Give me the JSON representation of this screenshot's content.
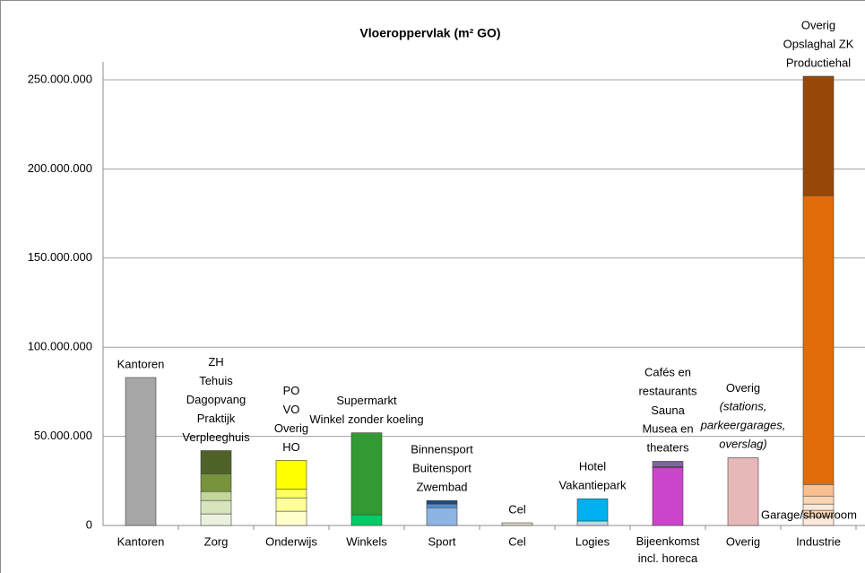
{
  "chart_data": {
    "type": "stacked-bar",
    "title": "Vloeroppervlak (m² GO)",
    "categories": [
      "Kantoren",
      "Zorg",
      "Onderwijs",
      "Winkels",
      "Sport",
      "Cel",
      "Logies",
      "Bijeenkomst incl. horeca",
      "Overig",
      "Industrie"
    ],
    "stacks": [
      [
        {
          "name": "Kantoren",
          "color": "#a6a6a6",
          "value": 83000000
        }
      ],
      [
        {
          "name": "ZH",
          "color": "#ebf1de",
          "value": 6500000
        },
        {
          "name": "Tehuis",
          "color": "#d8e4bc",
          "value": 7500000
        },
        {
          "name": "Dagopvang",
          "color": "#c4d79b",
          "value": 5000000
        },
        {
          "name": "Praktijk",
          "color": "#77933c",
          "value": 10000000
        },
        {
          "name": "Verpleeghuis",
          "color": "#4f6228",
          "value": 13000000
        }
      ],
      [
        {
          "name": "PO",
          "color": "#ffffcc",
          "value": 8000000
        },
        {
          "name": "VO",
          "color": "#ffff99",
          "value": 7500000
        },
        {
          "name": "Overig",
          "color": "#ffff66",
          "value": 5000000
        },
        {
          "name": "HO",
          "color": "#ffff00",
          "value": 16000000
        }
      ],
      [
        {
          "name": "Supermarkt",
          "color": "#00cc66",
          "value": 6000000
        },
        {
          "name": "Winkel zonder koeling",
          "color": "#339933",
          "value": 46000000
        }
      ],
      [
        {
          "name": "Binnensport",
          "color": "#8db4e2",
          "value": 10000000
        },
        {
          "name": "Buitensport",
          "color": "#538dd5",
          "value": 2000000
        },
        {
          "name": "Zwembad",
          "color": "#1f497d",
          "value": 2000000
        }
      ],
      [
        {
          "name": "Cel",
          "color": "#ddd9c4",
          "value": 1500000
        }
      ],
      [
        {
          "name": "Hotel",
          "color": "#b7dee8",
          "value": 2500000
        },
        {
          "name": "Vakantiepark",
          "color": "#00b0f0",
          "value": 12500000
        }
      ],
      [
        {
          "name": "Cafés en restaurants",
          "color": "#cc44cc",
          "value": 32500000
        },
        {
          "name": "Sauna",
          "color": "#b050b0",
          "value": 500000
        },
        {
          "name": "Musea en theaters",
          "color": "#8064a2",
          "value": 3000000
        }
      ],
      [
        {
          "name": "Overig",
          "note": "(stations, parkeergarages, overslag)",
          "color": "#e6b9b8",
          "value": 38000000
        }
      ],
      [
        {
          "name": "Garage/showroom",
          "color": "#fde9d9",
          "value": 5000000
        },
        {
          "name": null,
          "color": "#fcd5b4",
          "value": 3500000
        },
        {
          "name": null,
          "color": "#fde9d9",
          "value": 3500000
        },
        {
          "name": null,
          "color": "#fcd5b4",
          "value": 4500000
        },
        {
          "name": "Overig",
          "color": "#fabf8f",
          "value": 6500000
        },
        {
          "name": "Opslaghal ZK",
          "color": "#e26b0a",
          "value": 162000000
        },
        {
          "name": "Productiehal",
          "color": "#974706",
          "value": 67000000
        }
      ]
    ],
    "ylim": [
      0,
      250000000
    ],
    "yticks": [
      {
        "value": 0,
        "label": "0"
      },
      {
        "value": 50000000,
        "label": "50.000.000"
      },
      {
        "value": 100000000,
        "label": "100.000.000"
      },
      {
        "value": 150000000,
        "label": "150.000.000"
      },
      {
        "value": 200000000,
        "label": "200.000.000"
      },
      {
        "value": 250000000,
        "label": "250.000.000"
      }
    ],
    "grid": true
  }
}
